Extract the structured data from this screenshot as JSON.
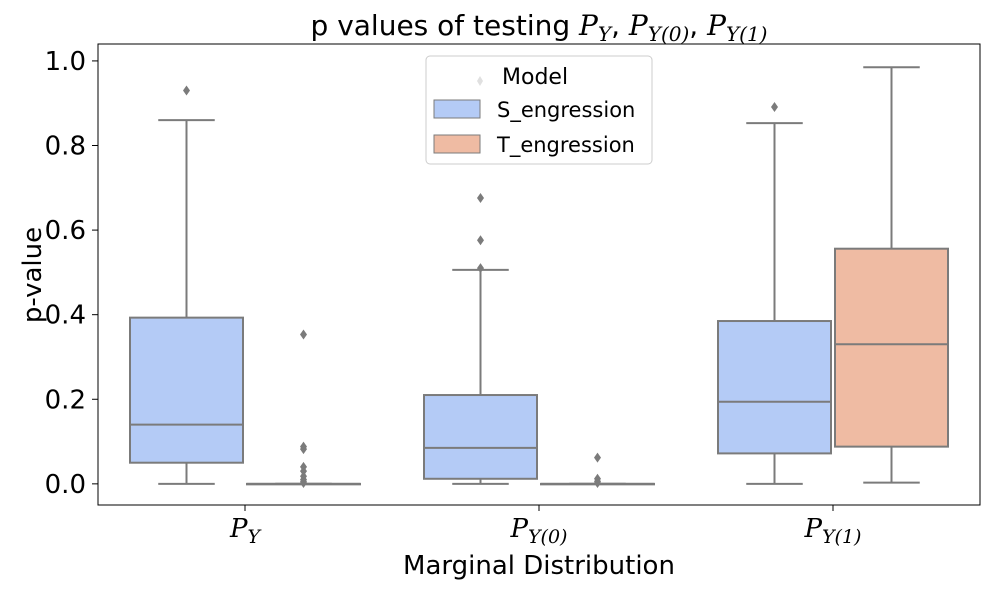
{
  "chart_data": {
    "type": "boxplot",
    "title_parts": [
      "p values of testing ",
      "P",
      "Y",
      ", ",
      "P",
      "Y(0)",
      ", ",
      "P",
      "Y(1)"
    ],
    "xlabel": "Marginal Distribution",
    "ylabel": "p-value",
    "ylim": [
      -0.05,
      1.04
    ],
    "yticks": [
      0.0,
      0.2,
      0.4,
      0.6,
      0.8,
      1.0
    ],
    "ytick_labels": [
      "0.0",
      "0.2",
      "0.4",
      "0.6",
      "0.8",
      "1.0"
    ],
    "categories": [
      {
        "main": "P",
        "sub": "Y"
      },
      {
        "main": "P",
        "sub": "Y(0)"
      },
      {
        "main": "P",
        "sub": "Y(1)"
      }
    ],
    "legend": {
      "title": "Model",
      "placement": "upper-center",
      "entries": [
        "S_engression",
        "T_engression"
      ]
    },
    "colors": {
      "S_engression": "#b4cbf6",
      "T_engression": "#efbba3",
      "lines": "#7b7b7b"
    },
    "series": [
      {
        "name": "S_engression",
        "boxes": [
          {
            "whisker_low": 0.0,
            "q1": 0.05,
            "median": 0.14,
            "q3": 0.393,
            "whisker_high": 0.86,
            "outliers": [
              0.93
            ]
          },
          {
            "whisker_low": 0.0,
            "q1": 0.012,
            "median": 0.085,
            "q3": 0.21,
            "whisker_high": 0.506,
            "outliers": [
              0.51,
              0.576,
              0.676
            ]
          },
          {
            "whisker_low": 0.0,
            "q1": 0.072,
            "median": 0.194,
            "q3": 0.385,
            "whisker_high": 0.853,
            "outliers": [
              0.891
            ]
          }
        ]
      },
      {
        "name": "T_engression",
        "boxes": [
          {
            "whisker_low": 0.0,
            "q1": 0.0,
            "median": 0.0,
            "q3": 0.0,
            "whisker_high": 0.0,
            "outliers": [
              0.353,
              0.088,
              0.082,
              0.04,
              0.03,
              0.018,
              0.01,
              0.005,
              0.002
            ]
          },
          {
            "whisker_low": 0.0,
            "q1": 0.0,
            "median": 0.0,
            "q3": 0.0,
            "whisker_high": 0.0,
            "outliers": [
              0.062,
              0.012,
              0.006,
              0.002
            ]
          },
          {
            "whisker_low": 0.003,
            "q1": 0.088,
            "median": 0.33,
            "q3": 0.556,
            "whisker_high": 0.985,
            "outliers": []
          }
        ]
      }
    ]
  }
}
